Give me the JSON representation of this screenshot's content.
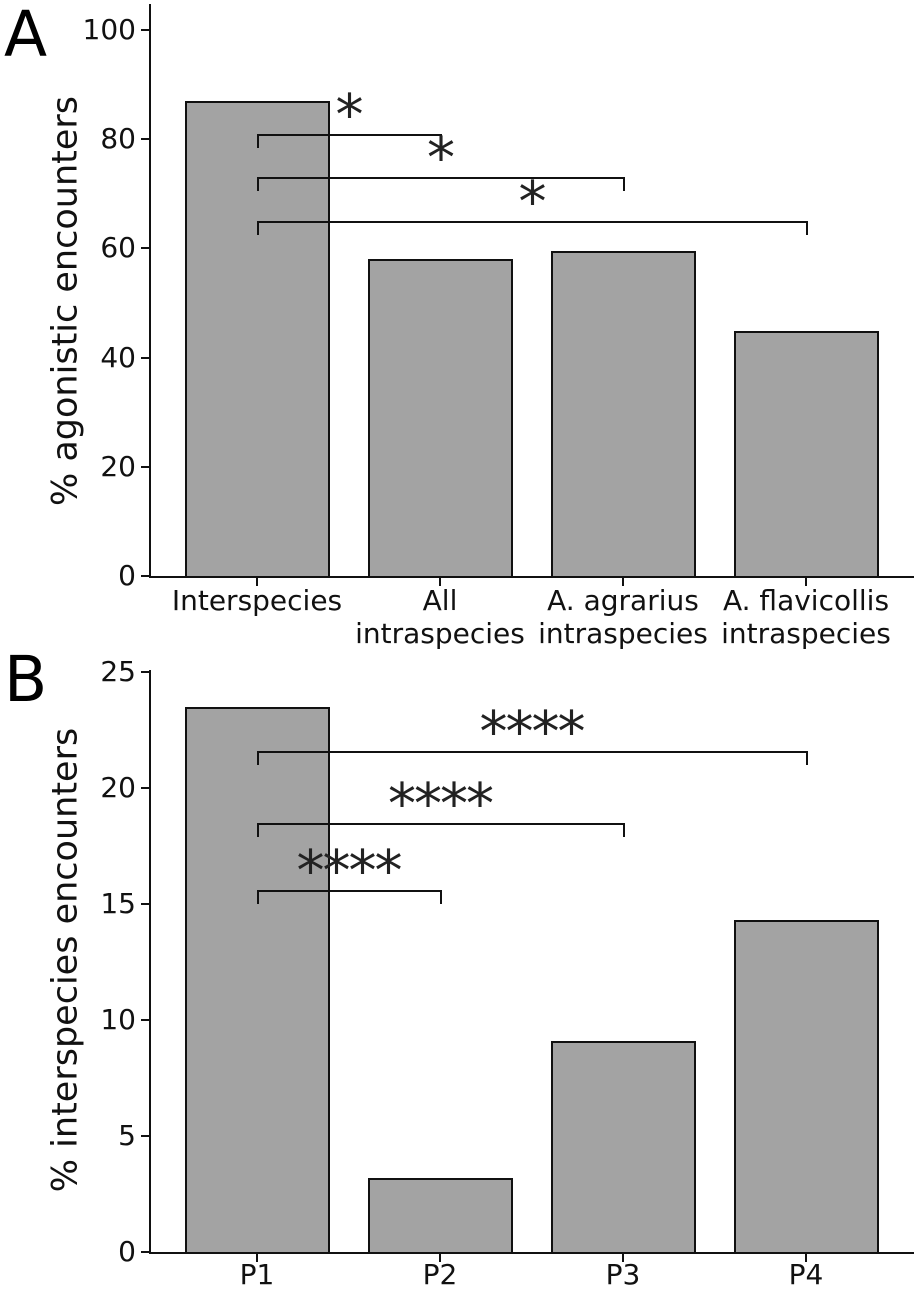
{
  "figure_type": "two-panel scientific bar figure",
  "chart_data": [
    {
      "type": "bar",
      "panel_letter": "A",
      "title": "",
      "xlabel": "",
      "ylabel": "% agonistic encounters",
      "categories": [
        [
          "Interspecies"
        ],
        [
          "All",
          "intraspecies"
        ],
        [
          "A. agrarius",
          "intraspecies"
        ],
        [
          "A. flavicollis",
          "intraspecies"
        ]
      ],
      "values": [
        87,
        58,
        59.5,
        44.8
      ],
      "yticks": [
        0,
        20,
        40,
        60,
        80,
        100
      ],
      "ylim": [
        0,
        104.7
      ],
      "grid": false,
      "legend": null,
      "bar_color": "#a3a3a3",
      "edge_color": "#111111",
      "significance": [
        {
          "from": 0,
          "to": 1,
          "height": 81,
          "label": "*"
        },
        {
          "from": 0,
          "to": 2,
          "height": 73,
          "label": "*"
        },
        {
          "from": 0,
          "to": 3,
          "height": 65,
          "label": "*"
        }
      ]
    },
    {
      "type": "bar",
      "panel_letter": "B",
      "title": "",
      "xlabel": "",
      "ylabel": "% interspecies encounters",
      "categories": [
        [
          "P1"
        ],
        [
          "P2"
        ],
        [
          "P3"
        ],
        [
          "P4"
        ]
      ],
      "values": [
        23.5,
        3.2,
        9.1,
        14.3
      ],
      "yticks": [
        0,
        5,
        10,
        15,
        20,
        25
      ],
      "ylim": [
        0,
        25.1
      ],
      "grid": false,
      "legend": null,
      "bar_color": "#a3a3a3",
      "edge_color": "#111111",
      "significance": [
        {
          "from": 0,
          "to": 1,
          "height": 15.6,
          "label": "****"
        },
        {
          "from": 0,
          "to": 2,
          "height": 18.5,
          "label": "****"
        },
        {
          "from": 0,
          "to": 3,
          "height": 21.6,
          "label": "****"
        }
      ]
    }
  ]
}
